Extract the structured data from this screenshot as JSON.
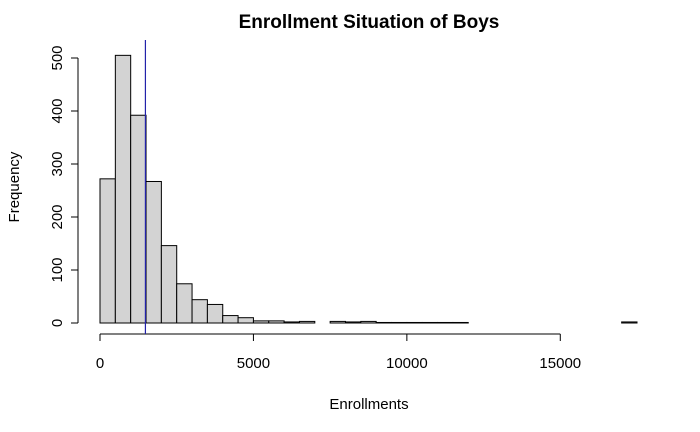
{
  "chart_data": {
    "type": "bar",
    "title": "Enrollment Situation of Boys",
    "xlabel": "Enrollments",
    "ylabel": "Frequency",
    "bin_width": 500,
    "bins": [
      {
        "x0": 0,
        "x1": 500,
        "count": 272
      },
      {
        "x0": 500,
        "x1": 1000,
        "count": 505
      },
      {
        "x0": 1000,
        "x1": 1500,
        "count": 392
      },
      {
        "x0": 1500,
        "x1": 2000,
        "count": 267
      },
      {
        "x0": 2000,
        "x1": 2500,
        "count": 146
      },
      {
        "x0": 2500,
        "x1": 3000,
        "count": 74
      },
      {
        "x0": 3000,
        "x1": 3500,
        "count": 44
      },
      {
        "x0": 3500,
        "x1": 4000,
        "count": 35
      },
      {
        "x0": 4000,
        "x1": 4500,
        "count": 14
      },
      {
        "x0": 4500,
        "x1": 5000,
        "count": 10
      },
      {
        "x0": 5000,
        "x1": 5500,
        "count": 4
      },
      {
        "x0": 5500,
        "x1": 6000,
        "count": 4
      },
      {
        "x0": 6000,
        "x1": 6500,
        "count": 2
      },
      {
        "x0": 6500,
        "x1": 7000,
        "count": 3
      },
      {
        "x0": 7000,
        "x1": 7500,
        "count": 0
      },
      {
        "x0": 7500,
        "x1": 8000,
        "count": 3
      },
      {
        "x0": 8000,
        "x1": 8500,
        "count": 2
      },
      {
        "x0": 8500,
        "x1": 9000,
        "count": 3
      },
      {
        "x0": 9000,
        "x1": 9500,
        "count": 1
      },
      {
        "x0": 9500,
        "x1": 10000,
        "count": 1
      },
      {
        "x0": 10000,
        "x1": 10500,
        "count": 1
      },
      {
        "x0": 10500,
        "x1": 11000,
        "count": 1
      },
      {
        "x0": 11000,
        "x1": 11500,
        "count": 1
      },
      {
        "x0": 11500,
        "x1": 12000,
        "count": 1
      },
      {
        "x0": 12000,
        "x1": 12500,
        "count": 0
      },
      {
        "x0": 12500,
        "x1": 13000,
        "count": 0
      },
      {
        "x0": 13000,
        "x1": 13500,
        "count": 0
      },
      {
        "x0": 13500,
        "x1": 14000,
        "count": 0
      },
      {
        "x0": 14000,
        "x1": 14500,
        "count": 0
      },
      {
        "x0": 14500,
        "x1": 15000,
        "count": 0
      },
      {
        "x0": 15000,
        "x1": 15500,
        "count": 0
      },
      {
        "x0": 15500,
        "x1": 16000,
        "count": 0
      },
      {
        "x0": 16000,
        "x1": 16500,
        "count": 0
      },
      {
        "x0": 16500,
        "x1": 17000,
        "count": 0
      },
      {
        "x0": 17000,
        "x1": 17500,
        "count": 2
      }
    ],
    "xlim": [
      0,
      17500
    ],
    "ylim": [
      0,
      520
    ],
    "x_ticks": [
      0,
      5000,
      10000,
      15000
    ],
    "y_ticks": [
      0,
      100,
      200,
      300,
      400,
      500
    ],
    "reference_line": {
      "x": 1480,
      "color": "#2222aa"
    },
    "bar_color": "#d3d3d3",
    "grid": false
  }
}
